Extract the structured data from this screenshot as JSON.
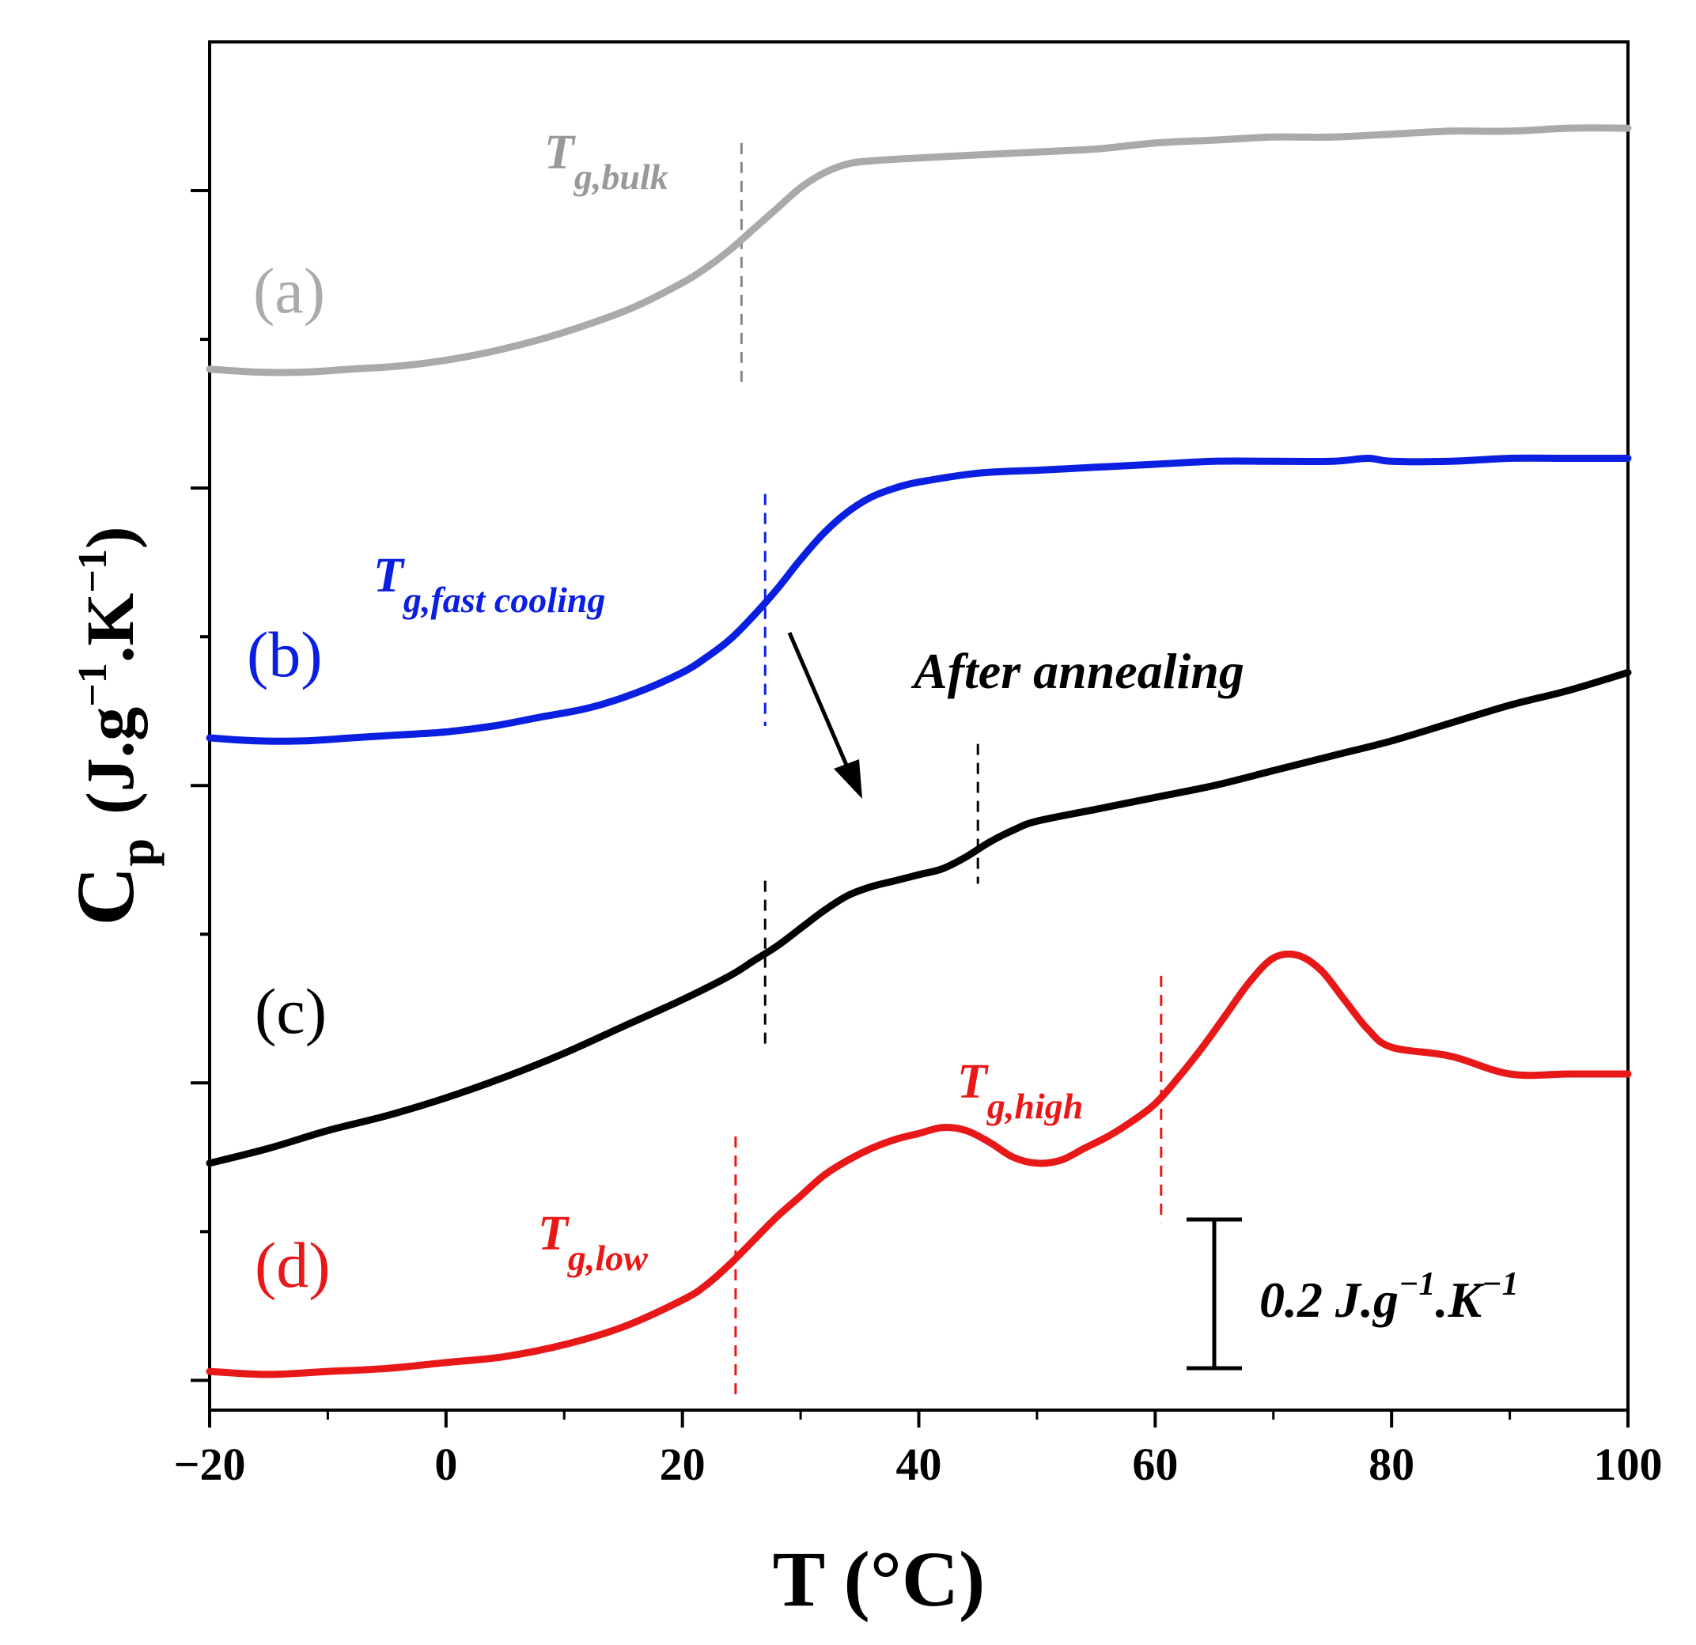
{
  "chart_data": {
    "type": "line",
    "xlabel": "T (°C)",
    "ylabel": {
      "base": "C",
      "sub": "p",
      "units_prefix": "(J.g",
      "exp1": "−1",
      "units_mid": ".K",
      "exp2": "−1",
      "units_suffix": ")"
    },
    "xlim": [
      -20,
      100
    ],
    "ylim": [
      0,
      4.6
    ],
    "x_ticks": [
      -20,
      0,
      20,
      40,
      60,
      80,
      100
    ],
    "x_tick_labels": [
      "−20",
      "0",
      "20",
      "40",
      "60",
      "80",
      "100"
    ],
    "x_minor_ticks": [
      -10,
      10,
      30,
      50,
      70,
      90
    ],
    "y_ticks_unlabeled": [
      0.1,
      0.6,
      1.1,
      1.6,
      2.1,
      2.6,
      3.1,
      3.6,
      4.1
    ],
    "y_tick_labels_shown": false,
    "series": [
      {
        "id": "a",
        "label": "(a)",
        "color": "#aaaaaa",
        "x": [
          -20,
          -16,
          -12,
          -8,
          -4,
          0,
          4,
          8,
          12,
          16,
          20,
          22,
          24,
          26,
          28,
          30,
          32,
          34,
          36,
          40,
          45,
          50,
          55,
          60,
          65,
          70,
          75,
          80,
          85,
          90,
          95,
          100
        ],
        "y": [
          3.5,
          3.49,
          3.49,
          3.5,
          3.51,
          3.53,
          3.56,
          3.6,
          3.65,
          3.71,
          3.79,
          3.84,
          3.9,
          3.97,
          4.04,
          4.11,
          4.16,
          4.19,
          4.2,
          4.21,
          4.22,
          4.23,
          4.24,
          4.26,
          4.27,
          4.28,
          4.28,
          4.29,
          4.3,
          4.3,
          4.31,
          4.31
        ]
      },
      {
        "id": "b",
        "label": "(b)",
        "color": "#0a1fe0",
        "x": [
          -20,
          -16,
          -12,
          -8,
          -4,
          0,
          4,
          8,
          12,
          16,
          20,
          22,
          24,
          26,
          28,
          30,
          32,
          34,
          36,
          38,
          40,
          45,
          50,
          55,
          60,
          65,
          70,
          75,
          78,
          80,
          85,
          90,
          95,
          100
        ],
        "y": [
          2.26,
          2.25,
          2.25,
          2.26,
          2.27,
          2.28,
          2.3,
          2.33,
          2.36,
          2.41,
          2.48,
          2.53,
          2.59,
          2.67,
          2.76,
          2.86,
          2.95,
          3.02,
          3.07,
          3.1,
          3.12,
          3.15,
          3.16,
          3.17,
          3.18,
          3.19,
          3.19,
          3.19,
          3.2,
          3.19,
          3.19,
          3.2,
          3.2,
          3.2
        ]
      },
      {
        "id": "c",
        "label": "(c)",
        "color": "#000000",
        "x": [
          -20,
          -15,
          -10,
          -5,
          0,
          5,
          10,
          15,
          20,
          24,
          26,
          28,
          30,
          32,
          34,
          36,
          38,
          40,
          42,
          44,
          46,
          48,
          50,
          55,
          60,
          65,
          70,
          75,
          80,
          85,
          90,
          95,
          100
        ],
        "y": [
          0.83,
          0.88,
          0.94,
          0.99,
          1.05,
          1.12,
          1.2,
          1.29,
          1.38,
          1.46,
          1.51,
          1.56,
          1.62,
          1.68,
          1.73,
          1.76,
          1.78,
          1.8,
          1.82,
          1.86,
          1.91,
          1.95,
          1.98,
          2.02,
          2.06,
          2.1,
          2.15,
          2.2,
          2.25,
          2.31,
          2.37,
          2.42,
          2.48
        ]
      },
      {
        "id": "d",
        "label": "(d)",
        "color": "#e81818",
        "x": [
          -20,
          -15,
          -10,
          -5,
          0,
          5,
          10,
          15,
          20,
          22,
          24,
          26,
          28,
          30,
          32,
          34,
          36,
          38,
          40,
          42,
          44,
          46,
          48,
          50,
          52,
          54,
          56,
          58,
          60,
          62,
          64,
          66,
          68,
          70,
          72,
          74,
          76,
          78,
          80,
          85,
          90,
          95,
          100
        ],
        "y": [
          0.13,
          0.12,
          0.13,
          0.14,
          0.16,
          0.18,
          0.22,
          0.28,
          0.37,
          0.42,
          0.49,
          0.57,
          0.65,
          0.72,
          0.79,
          0.84,
          0.88,
          0.91,
          0.93,
          0.95,
          0.94,
          0.9,
          0.85,
          0.83,
          0.84,
          0.88,
          0.92,
          0.97,
          1.03,
          1.12,
          1.22,
          1.33,
          1.44,
          1.52,
          1.53,
          1.48,
          1.38,
          1.28,
          1.22,
          1.19,
          1.13,
          1.13,
          1.13
        ]
      }
    ],
    "markers": [
      {
        "id": "tg-bulk",
        "x": 25,
        "y_from": 3.45,
        "y_to": 4.26,
        "color": "#888888"
      },
      {
        "id": "tg-fast",
        "x": 27,
        "y_from": 2.3,
        "y_to": 3.08,
        "color": "#0a1fe0"
      },
      {
        "id": "tg-c-low",
        "x": 27,
        "y_from": 1.23,
        "y_to": 1.78,
        "color": "#000000"
      },
      {
        "id": "tg-c-high",
        "x": 45,
        "y_from": 1.77,
        "y_to": 2.24,
        "color": "#000000"
      },
      {
        "id": "tg-low",
        "x": 24.5,
        "y_from": 0.03,
        "y_to": 0.92,
        "color": "#e81818"
      },
      {
        "id": "tg-high",
        "x": 60.5,
        "y_from": 0.63,
        "y_to": 1.46,
        "color": "#e81818"
      }
    ],
    "annotations": {
      "tg_bulk": {
        "T": "T",
        "sub": "g,bulk",
        "color": "#999999"
      },
      "tg_fast": {
        "T": "T",
        "sub": "g,fast cooling",
        "color": "#0a1fe0"
      },
      "tg_low": {
        "T": "T",
        "sub": "g,low",
        "color": "#e81818"
      },
      "tg_high": {
        "T": "T",
        "sub": "g,high",
        "color": "#e81818"
      },
      "after_annealing": "After annealing",
      "scale_bar": {
        "value": 0.2,
        "pre": "0.2 J.g",
        "exp1": "−1",
        "mid": ".K",
        "exp2": "−1"
      }
    }
  }
}
